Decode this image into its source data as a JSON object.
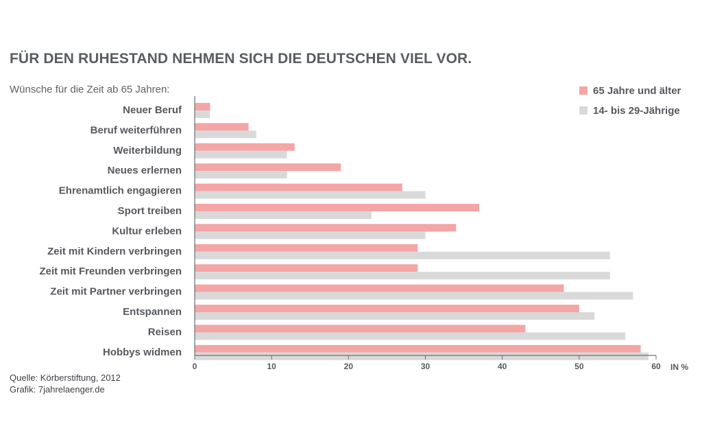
{
  "title": "FÜR DEN RUHESTAND NEHMEN SICH DIE DEUTSCHEN VIEL VOR.",
  "subtitle": "Wünsche für die Zeit ab 65 Jahren:",
  "source": "Quelle: Körberstiftung, 2012",
  "credit": "Grafik: 7jahrelaenger.de",
  "colors": {
    "older": "#f4a5a5",
    "younger": "#d9d9d9",
    "axis": "#6b6e73"
  },
  "chart_data": {
    "type": "bar",
    "orientation": "horizontal",
    "title": "FÜR DEN RUHESTAND NEHMEN SICH DIE DEUTSCHEN VIEL VOR.",
    "xlabel": "IN %",
    "xlim": [
      0,
      60
    ],
    "xticks": [
      0,
      10,
      20,
      30,
      40,
      50,
      60
    ],
    "legend_position": "top-right",
    "grid": false,
    "categories": [
      "Neuer Beruf",
      "Beruf weiterführen",
      "Weiterbildung",
      "Neues erlernen",
      "Ehrenamtlich engagieren",
      "Sport treiben",
      "Kultur erleben",
      "Zeit mit Kindern verbringen",
      "Zeit mit Freunden verbringen",
      "Zeit mit Partner verbringen",
      "Entspannen",
      "Reisen",
      "Hobbys widmen"
    ],
    "series": [
      {
        "name": "65 Jahre und älter",
        "color": "#f4a5a5",
        "values": [
          2,
          7,
          13,
          19,
          27,
          37,
          34,
          29,
          29,
          48,
          50,
          43,
          58
        ]
      },
      {
        "name": "14- bis 29-Jährige",
        "color": "#d9d9d9",
        "values": [
          2,
          8,
          12,
          12,
          30,
          23,
          30,
          54,
          54,
          57,
          52,
          56,
          59
        ]
      }
    ]
  }
}
